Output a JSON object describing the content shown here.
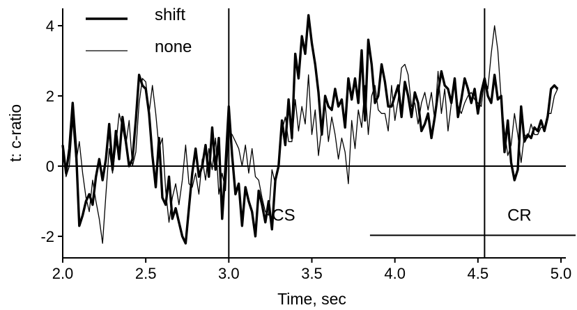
{
  "chart_data": {
    "type": "line",
    "title": "",
    "xlabel": "Time, sec",
    "ylabel": "t: c-ratio",
    "xlim": [
      2.0,
      5.0
    ],
    "ylim": [
      -2.6,
      4.5
    ],
    "x_ticks": [
      "2.0",
      "2.5",
      "3.0",
      "3.5",
      "4.0",
      "4.5",
      "5.0"
    ],
    "y_ticks": [
      "4",
      "2",
      "0",
      "-2"
    ],
    "grid": false,
    "legend_position": "top-left",
    "zero_line": 0,
    "vertical_markers": [
      3.0,
      4.54
    ],
    "annotations": [
      {
        "text": "CS",
        "x": 3.33,
        "y": -1.4
      },
      {
        "text": "CR",
        "x": 4.75,
        "y": -1.4
      }
    ],
    "cr_bar": {
      "x_start": 3.85,
      "x_end": 5.0,
      "y": -1.97
    },
    "series": [
      {
        "name": "shift",
        "style": "thick",
        "x": [
          2.0,
          2.02,
          2.04,
          2.06,
          2.08,
          2.1,
          2.12,
          2.14,
          2.16,
          2.18,
          2.2,
          2.22,
          2.24,
          2.26,
          2.28,
          2.3,
          2.32,
          2.34,
          2.36,
          2.38,
          2.4,
          2.42,
          2.44,
          2.46,
          2.48,
          2.5,
          2.52,
          2.54,
          2.56,
          2.58,
          2.6,
          2.62,
          2.64,
          2.66,
          2.68,
          2.7,
          2.72,
          2.74,
          2.76,
          2.78,
          2.8,
          2.82,
          2.84,
          2.86,
          2.88,
          2.9,
          2.92,
          2.94,
          2.96,
          2.98,
          3.0,
          3.02,
          3.04,
          3.06,
          3.08,
          3.1,
          3.12,
          3.14,
          3.16,
          3.18,
          3.2,
          3.22,
          3.24,
          3.26,
          3.28,
          3.3,
          3.32,
          3.34,
          3.36,
          3.38,
          3.4,
          3.42,
          3.44,
          3.46,
          3.48,
          3.5,
          3.52,
          3.54,
          3.56,
          3.58,
          3.6,
          3.62,
          3.64,
          3.66,
          3.68,
          3.7,
          3.72,
          3.74,
          3.76,
          3.78,
          3.8,
          3.82,
          3.84,
          3.86,
          3.88,
          3.9,
          3.92,
          3.94,
          3.96,
          3.98,
          4.0,
          4.02,
          4.04,
          4.06,
          4.08,
          4.1,
          4.12,
          4.14,
          4.16,
          4.18,
          4.2,
          4.22,
          4.24,
          4.26,
          4.28,
          4.3,
          4.32,
          4.34,
          4.36,
          4.38,
          4.4,
          4.42,
          4.44,
          4.46,
          4.48,
          4.5,
          4.52,
          4.54,
          4.56,
          4.58,
          4.6,
          4.62,
          4.64,
          4.66,
          4.68,
          4.7,
          4.72,
          4.74,
          4.76,
          4.78,
          4.8,
          4.82,
          4.84,
          4.86,
          4.88,
          4.9,
          4.92,
          4.94,
          4.96,
          4.98
        ],
        "y": [
          0.6,
          -0.2,
          0.5,
          1.8,
          0.5,
          -1.7,
          -1.4,
          -1.0,
          -0.8,
          -1.1,
          -0.3,
          0.2,
          -0.4,
          0.2,
          1.2,
          -0.1,
          1.0,
          0.2,
          1.4,
          0.7,
          0.0,
          0.2,
          1.3,
          2.6,
          2.3,
          2.2,
          1.5,
          0.3,
          -0.6,
          0.8,
          -0.9,
          -1.1,
          -0.3,
          -1.5,
          -1.2,
          -1.6,
          -2.0,
          -2.2,
          -1.2,
          -0.2,
          0.5,
          -0.3,
          0.0,
          0.6,
          -0.3,
          1.1,
          -0.1,
          0.8,
          -1.5,
          0.0,
          1.7,
          0.3,
          -0.8,
          -0.5,
          -1.7,
          -0.6,
          -1.0,
          -1.3,
          -2.0,
          -0.7,
          -1.1,
          -1.6,
          -1.0,
          -1.8,
          -0.4,
          0.0,
          1.3,
          0.6,
          1.9,
          0.8,
          3.2,
          2.5,
          3.7,
          3.2,
          4.3,
          3.5,
          2.9,
          2.1,
          0.9,
          2.0,
          1.7,
          1.6,
          2.2,
          1.7,
          1.9,
          1.1,
          2.5,
          1.9,
          2.5,
          1.8,
          3.3,
          1.3,
          3.6,
          2.9,
          1.8,
          2.0,
          2.9,
          2.4,
          1.7,
          1.7,
          2.0,
          2.3,
          1.4,
          2.4,
          2.0,
          1.4,
          2.1,
          1.8,
          1.0,
          1.2,
          1.5,
          0.8,
          1.4,
          2.1,
          2.7,
          2.3,
          2.2,
          1.8,
          2.5,
          1.4,
          1.9,
          2.5,
          2.2,
          1.8,
          2.2,
          1.5,
          2.1,
          2.5,
          2.0,
          1.8,
          2.6,
          1.9,
          2.0,
          0.4,
          1.3,
          0.1,
          -0.4,
          -0.1,
          1.7,
          0.7,
          0.9,
          0.8,
          1.1,
          1.0,
          1.3,
          1.0,
          1.4,
          2.2,
          2.3,
          2.2
        ]
      },
      {
        "name": "none",
        "style": "thin",
        "x": [
          2.0,
          2.02,
          2.04,
          2.06,
          2.08,
          2.1,
          2.12,
          2.14,
          2.16,
          2.18,
          2.2,
          2.22,
          2.24,
          2.26,
          2.28,
          2.3,
          2.32,
          2.34,
          2.36,
          2.38,
          2.4,
          2.42,
          2.44,
          2.46,
          2.48,
          2.5,
          2.52,
          2.54,
          2.56,
          2.58,
          2.6,
          2.62,
          2.64,
          2.66,
          2.68,
          2.7,
          2.72,
          2.74,
          2.76,
          2.78,
          2.8,
          2.82,
          2.84,
          2.86,
          2.88,
          2.9,
          2.92,
          2.94,
          2.96,
          2.98,
          3.0,
          3.02,
          3.04,
          3.06,
          3.08,
          3.1,
          3.12,
          3.14,
          3.16,
          3.18,
          3.2,
          3.22,
          3.24,
          3.26,
          3.28,
          3.3,
          3.32,
          3.34,
          3.36,
          3.38,
          3.4,
          3.42,
          3.44,
          3.46,
          3.48,
          3.5,
          3.52,
          3.54,
          3.56,
          3.58,
          3.6,
          3.62,
          3.64,
          3.66,
          3.68,
          3.7,
          3.72,
          3.74,
          3.76,
          3.78,
          3.8,
          3.82,
          3.84,
          3.86,
          3.88,
          3.9,
          3.92,
          3.94,
          3.96,
          3.98,
          4.0,
          4.02,
          4.04,
          4.06,
          4.08,
          4.1,
          4.12,
          4.14,
          4.16,
          4.18,
          4.2,
          4.22,
          4.24,
          4.26,
          4.28,
          4.3,
          4.32,
          4.34,
          4.36,
          4.38,
          4.4,
          4.42,
          4.44,
          4.46,
          4.48,
          4.5,
          4.52,
          4.54,
          4.56,
          4.58,
          4.6,
          4.62,
          4.64,
          4.66,
          4.68,
          4.7,
          4.72,
          4.74,
          4.76,
          4.78,
          4.8,
          4.82,
          4.84,
          4.86,
          4.88,
          4.9,
          4.92,
          4.94,
          4.96,
          4.98
        ],
        "y": [
          0.4,
          -0.3,
          0.0,
          1.3,
          0.1,
          0.7,
          -0.2,
          -0.9,
          -1.3,
          -0.4,
          -1.0,
          -1.5,
          -2.2,
          -0.8,
          0.5,
          -0.2,
          0.6,
          1.5,
          1.1,
          0.6,
          1.3,
          0.0,
          0.4,
          1.8,
          2.5,
          2.4,
          1.5,
          2.3,
          1.5,
          0.5,
          0.8,
          -0.7,
          -1.6,
          -0.9,
          -0.5,
          -1.1,
          -0.4,
          0.6,
          -0.5,
          -0.6,
          -0.2,
          -0.8,
          0.2,
          -0.4,
          0.5,
          -0.1,
          0.8,
          -0.8,
          -0.2,
          -0.7,
          1.0,
          0.9,
          0.7,
          0.5,
          0.0,
          0.6,
          -0.2,
          0.5,
          -0.3,
          -0.4,
          -0.9,
          -1.3,
          -1.4,
          -0.1,
          -0.5,
          0.0,
          1.0,
          1.4,
          0.7,
          0.7,
          1.9,
          1.0,
          1.7,
          1.2,
          2.6,
          0.9,
          1.6,
          0.3,
          1.1,
          1.8,
          0.7,
          1.4,
          0.9,
          0.2,
          0.8,
          0.4,
          -0.5,
          1.3,
          0.5,
          1.6,
          1.1,
          2.3,
          0.9,
          2.0,
          2.3,
          1.6,
          1.5,
          1.5,
          1.0,
          2.3,
          1.3,
          1.9,
          2.8,
          2.9,
          2.6,
          1.7,
          1.8,
          1.2,
          1.8,
          2.1,
          1.6,
          2.1,
          1.3,
          2.7,
          1.5,
          2.2,
          1.0,
          1.8,
          2.5,
          1.7,
          1.5,
          1.8,
          2.0,
          2.1,
          1.9,
          1.8,
          1.7,
          2.5,
          2.2,
          3.2,
          4.0,
          3.3,
          1.9,
          1.0,
          0.3,
          0.6,
          1.5,
          0.9,
          0.1,
          0.9,
          0.8,
          1.2,
          0.9,
          0.9,
          1.1,
          1.1,
          1.5,
          1.5,
          2.0,
          2.2
        ]
      }
    ]
  }
}
